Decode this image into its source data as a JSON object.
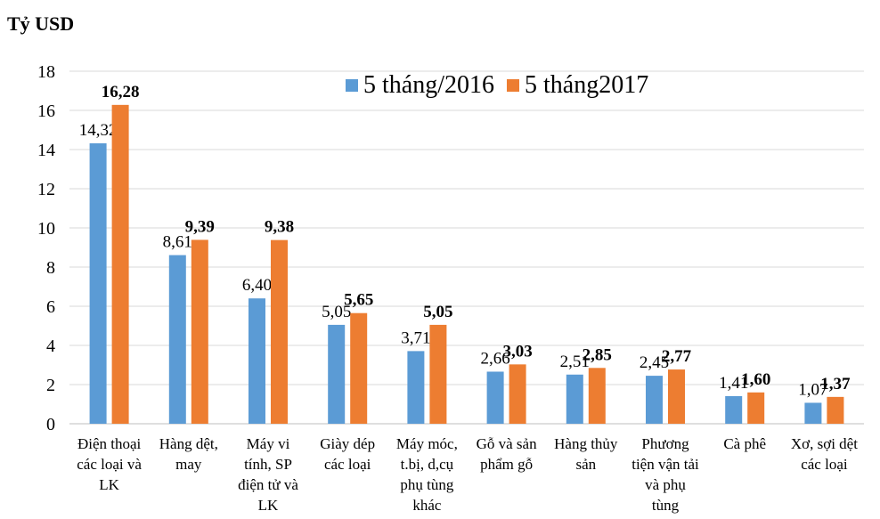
{
  "chart_data": {
    "type": "bar",
    "unit_label": "Tỷ USD",
    "categories": [
      [
        "Điện thoại",
        "các loại và",
        "LK"
      ],
      [
        "Hàng dệt,",
        "may"
      ],
      [
        "Máy vi",
        "tính, SP",
        "điện tử và",
        "LK"
      ],
      [
        "Giày dép",
        "các loại"
      ],
      [
        "Máy móc,",
        "t.bị, d,cụ",
        "phụ tùng",
        "khác"
      ],
      [
        "Gỗ và sản",
        "phẩm gỗ"
      ],
      [
        "Hàng thủy",
        "sản"
      ],
      [
        "Phương",
        "tiện vận tải",
        "và phụ",
        "tùng"
      ],
      [
        "Cà phê"
      ],
      [
        "Xơ, sợi dệt",
        "các loại"
      ]
    ],
    "series": [
      {
        "name": "5 tháng/2016",
        "color": "#5B9BD5",
        "values": [
          14.32,
          8.61,
          6.4,
          5.05,
          3.71,
          2.66,
          2.51,
          2.45,
          1.41,
          1.07
        ],
        "labels": [
          "14,32",
          "8,61",
          "6,40",
          "5,05",
          "3,71",
          "2,66",
          "2,51",
          "2,45",
          "1,41",
          "1,07"
        ],
        "bold": false
      },
      {
        "name": "5 tháng2017",
        "color": "#ED7D31",
        "values": [
          16.28,
          9.39,
          9.38,
          5.65,
          5.05,
          3.03,
          2.85,
          2.77,
          1.6,
          1.37
        ],
        "labels": [
          "16,28",
          "9,39",
          "9,38",
          "5,65",
          "5,05",
          "3,03",
          "2,85",
          "2,77",
          "1,60",
          "1,37"
        ],
        "bold": true
      }
    ],
    "ylim": [
      0,
      18
    ],
    "yticks": [
      0,
      2,
      4,
      6,
      8,
      10,
      12,
      14,
      16,
      18
    ],
    "grid": true,
    "legend_position": "top-center"
  }
}
